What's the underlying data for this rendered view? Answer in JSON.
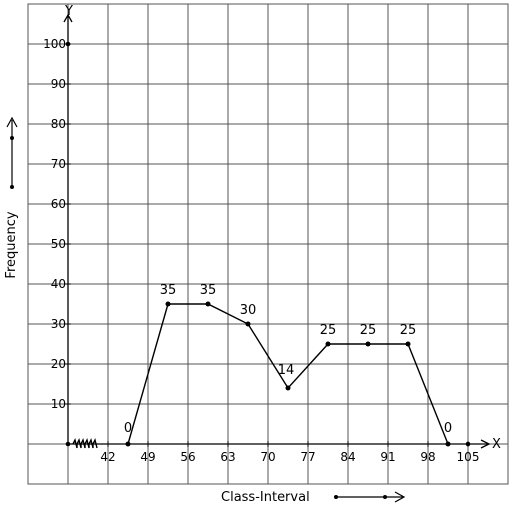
{
  "chart_data": {
    "type": "line",
    "title": "",
    "xlabel": "Class-Interval",
    "ylabel": "Frequency",
    "x_axis_letter": "X",
    "y_axis_letter": "Y",
    "grid": true,
    "ylim": [
      0,
      100
    ],
    "xlim": [
      35,
      108.5
    ],
    "x_tick_labels": [
      "42",
      "49",
      "56",
      "63",
      "70",
      "77",
      "84",
      "91",
      "98",
      "105"
    ],
    "y_tick_labels": [
      "10",
      "20",
      "30",
      "40",
      "50",
      "60",
      "70",
      "80",
      "90",
      "100"
    ],
    "series": [
      {
        "x": [
          45.5,
          52.5,
          59.5,
          66.5,
          73.5,
          80.5,
          87.5,
          94.5,
          101.5
        ],
        "values": [
          0,
          35,
          35,
          30,
          14,
          25,
          25,
          25,
          0
        ],
        "labels": [
          "0",
          "35",
          "35",
          "30",
          "14",
          "25",
          "25",
          "25",
          "0"
        ]
      }
    ]
  }
}
